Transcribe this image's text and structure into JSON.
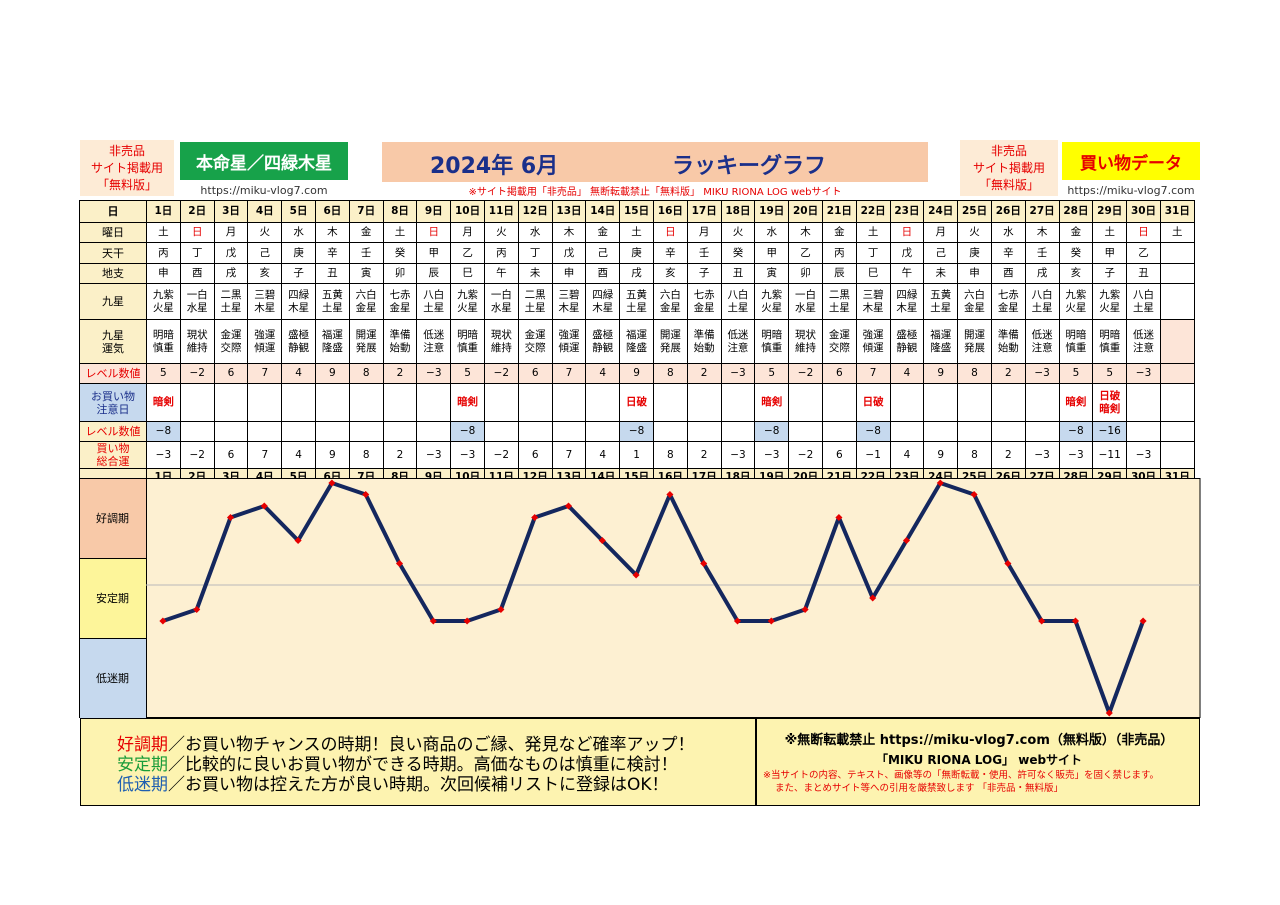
{
  "header": {
    "left_lines": [
      "非売品",
      "サイト掲載用",
      "「無料版」"
    ],
    "honmei": "本命星／四緑木星",
    "url_left": "https://miku-vlog7.com",
    "year_month": "2024年 6月",
    "lucky_graph": "ラッキーグラフ",
    "note": "※サイト掲載用「非売品」 無断転載禁止「無料版」 MIKU RIONA LOG webサイト",
    "right_lines": [
      "非売品",
      "サイト掲載用",
      "「無料版」"
    ],
    "kaimono": "買い物データ",
    "url_right": "https://miku-vlog7.com"
  },
  "labels": {
    "day": "日",
    "weekday": "曜日",
    "stem": "天干",
    "branch": "地支",
    "star": "九星",
    "luck_1": "九星",
    "luck_2": "運気",
    "level": "レベル数値",
    "care_1": "お買い物",
    "care_2": "注意日",
    "level2": "レベル数値",
    "total_1": "買い物",
    "total_2": "総合運"
  },
  "days": [
    "1日",
    "2日",
    "3日",
    "4日",
    "5日",
    "6日",
    "7日",
    "8日",
    "9日",
    "10日",
    "11日",
    "12日",
    "13日",
    "14日",
    "15日",
    "16日",
    "17日",
    "18日",
    "19日",
    "20日",
    "21日",
    "22日",
    "23日",
    "24日",
    "25日",
    "26日",
    "27日",
    "28日",
    "29日",
    "30日",
    "31日"
  ],
  "weekdays": [
    "土",
    "日",
    "月",
    "火",
    "水",
    "木",
    "金",
    "土",
    "日",
    "月",
    "火",
    "水",
    "木",
    "金",
    "土",
    "日",
    "月",
    "火",
    "水",
    "木",
    "金",
    "土",
    "日",
    "月",
    "火",
    "水",
    "木",
    "金",
    "土",
    "日",
    "土"
  ],
  "stems": [
    "丙",
    "丁",
    "戊",
    "己",
    "庚",
    "辛",
    "壬",
    "癸",
    "甲",
    "乙",
    "丙",
    "丁",
    "戊",
    "己",
    "庚",
    "辛",
    "壬",
    "癸",
    "甲",
    "乙",
    "丙",
    "丁",
    "戊",
    "己",
    "庚",
    "辛",
    "壬",
    "癸",
    "甲",
    "乙",
    ""
  ],
  "branches": [
    "申",
    "酉",
    "戌",
    "亥",
    "子",
    "丑",
    "寅",
    "卯",
    "辰",
    "巳",
    "午",
    "未",
    "申",
    "酉",
    "戌",
    "亥",
    "子",
    "丑",
    "寅",
    "卯",
    "辰",
    "巳",
    "午",
    "未",
    "申",
    "酉",
    "戌",
    "亥",
    "子",
    "丑",
    ""
  ],
  "stars": [
    [
      "九紫",
      "火星"
    ],
    [
      "一白",
      "水星"
    ],
    [
      "二黒",
      "土星"
    ],
    [
      "三碧",
      "木星"
    ],
    [
      "四緑",
      "木星"
    ],
    [
      "五黄",
      "土星"
    ],
    [
      "六白",
      "金星"
    ],
    [
      "七赤",
      "金星"
    ],
    [
      "八白",
      "土星"
    ],
    [
      "九紫",
      "火星"
    ],
    [
      "一白",
      "水星"
    ],
    [
      "二黒",
      "土星"
    ],
    [
      "三碧",
      "木星"
    ],
    [
      "四緑",
      "木星"
    ],
    [
      "五黄",
      "土星"
    ],
    [
      "六白",
      "金星"
    ],
    [
      "七赤",
      "金星"
    ],
    [
      "八白",
      "土星"
    ],
    [
      "九紫",
      "火星"
    ],
    [
      "一白",
      "水星"
    ],
    [
      "二黒",
      "土星"
    ],
    [
      "三碧",
      "木星"
    ],
    [
      "四緑",
      "木星"
    ],
    [
      "五黄",
      "土星"
    ],
    [
      "六白",
      "金星"
    ],
    [
      "七赤",
      "金星"
    ],
    [
      "八白",
      "土星"
    ],
    [
      "九紫",
      "火星"
    ],
    [
      "九紫",
      "火星"
    ],
    [
      "八白",
      "土星"
    ],
    [
      "",
      ""
    ]
  ],
  "luck": [
    [
      "明暗",
      "慎重"
    ],
    [
      "現状",
      "維持"
    ],
    [
      "金運",
      "交際"
    ],
    [
      "強運",
      "傾運"
    ],
    [
      "盛極",
      "静観"
    ],
    [
      "福運",
      "隆盛"
    ],
    [
      "開運",
      "発展"
    ],
    [
      "準備",
      "始動"
    ],
    [
      "低迷",
      "注意"
    ],
    [
      "明暗",
      "慎重"
    ],
    [
      "現状",
      "維持"
    ],
    [
      "金運",
      "交際"
    ],
    [
      "強運",
      "傾運"
    ],
    [
      "盛極",
      "静観"
    ],
    [
      "福運",
      "隆盛"
    ],
    [
      "開運",
      "発展"
    ],
    [
      "準備",
      "始動"
    ],
    [
      "低迷",
      "注意"
    ],
    [
      "明暗",
      "慎重"
    ],
    [
      "現状",
      "維持"
    ],
    [
      "金運",
      "交際"
    ],
    [
      "強運",
      "傾運"
    ],
    [
      "盛極",
      "静観"
    ],
    [
      "福運",
      "隆盛"
    ],
    [
      "開運",
      "発展"
    ],
    [
      "準備",
      "始動"
    ],
    [
      "低迷",
      "注意"
    ],
    [
      "明暗",
      "慎重"
    ],
    [
      "明暗",
      "慎重"
    ],
    [
      "低迷",
      "注意"
    ],
    [
      "",
      ""
    ]
  ],
  "level": [
    "5",
    "−2",
    "6",
    "7",
    "4",
    "9",
    "8",
    "2",
    "−3",
    "5",
    "−2",
    "6",
    "7",
    "4",
    "9",
    "8",
    "2",
    "−3",
    "5",
    "−2",
    "6",
    "7",
    "4",
    "9",
    "8",
    "2",
    "−3",
    "5",
    "5",
    "−3",
    ""
  ],
  "care": [
    "暗剣",
    "",
    "",
    "",
    "",
    "",
    "",
    "",
    "",
    "暗剣",
    "",
    "",
    "",
    "",
    "日破",
    "",
    "",
    "",
    "暗剣",
    "",
    "",
    "日破",
    "",
    "",
    "",
    "",
    "",
    "暗剣",
    "日破 暗剣",
    "",
    ""
  ],
  "level2": [
    "−8",
    "",
    "",
    "",
    "",
    "",
    "",
    "",
    "",
    "−8",
    "",
    "",
    "",
    "",
    "−8",
    "",
    "",
    "",
    "−8",
    "",
    "",
    "−8",
    "",
    "",
    "",
    "",
    "",
    "−8",
    "−16",
    "",
    ""
  ],
  "total": [
    "−3",
    "−2",
    "6",
    "7",
    "4",
    "9",
    "8",
    "2",
    "−3",
    "−3",
    "−2",
    "6",
    "7",
    "4",
    "1",
    "8",
    "2",
    "−3",
    "−3",
    "−2",
    "6",
    "−1",
    "4",
    "9",
    "8",
    "2",
    "−3",
    "−3",
    "−11",
    "−3",
    ""
  ],
  "chart_data": {
    "type": "line",
    "x": [
      1,
      2,
      3,
      4,
      5,
      6,
      7,
      8,
      9,
      10,
      11,
      12,
      13,
      14,
      15,
      16,
      17,
      18,
      19,
      20,
      21,
      22,
      23,
      24,
      25,
      26,
      27,
      28,
      29,
      30
    ],
    "categories": [
      "1日",
      "2日",
      "3日",
      "4日",
      "5日",
      "6日",
      "7日",
      "8日",
      "9日",
      "10日",
      "11日",
      "12日",
      "13日",
      "14日",
      "15日",
      "16日",
      "17日",
      "18日",
      "19日",
      "20日",
      "21日",
      "22日",
      "23日",
      "24日",
      "25日",
      "26日",
      "27日",
      "28日",
      "29日",
      "30日"
    ],
    "values": [
      -3,
      -2,
      6,
      7,
      4,
      9,
      8,
      2,
      -3,
      -3,
      -2,
      6,
      7,
      4,
      1,
      8,
      2,
      -3,
      -3,
      -2,
      6,
      -1,
      4,
      9,
      8,
      2,
      -3,
      -3,
      -11,
      -3
    ],
    "ylim": [
      -11,
      9
    ],
    "bands": [
      "好調期",
      "安定期",
      "低迷期"
    ],
    "line_color": "#14275e",
    "marker_color": "#e60000"
  },
  "footer": {
    "good_term": "好調期",
    "good_text": "／お買い物チャンスの時期！良い商品のご縁、発見など確率アップ！",
    "stable_term": "安定期",
    "stable_text": "／比較的に良いお買い物ができる時期。高価なものは慎重に検討！",
    "low_term": "低迷期",
    "low_text": "／お買い物は控えた方が良い時期。次回候補リストに登録はOK！",
    "notice": "※無断転載禁止 https://miku-vlog7.com（無料版）（非売品）",
    "site": "「MIKU RIONA LOG」 webサイト",
    "warn_1": "※当サイトの内容、テキスト、画像等の「無断転載・使用、許可なく販売」を固く禁じます。",
    "warn_2": "また、まとめサイト等への引用を厳禁致します 「非売品・無料版」"
  }
}
